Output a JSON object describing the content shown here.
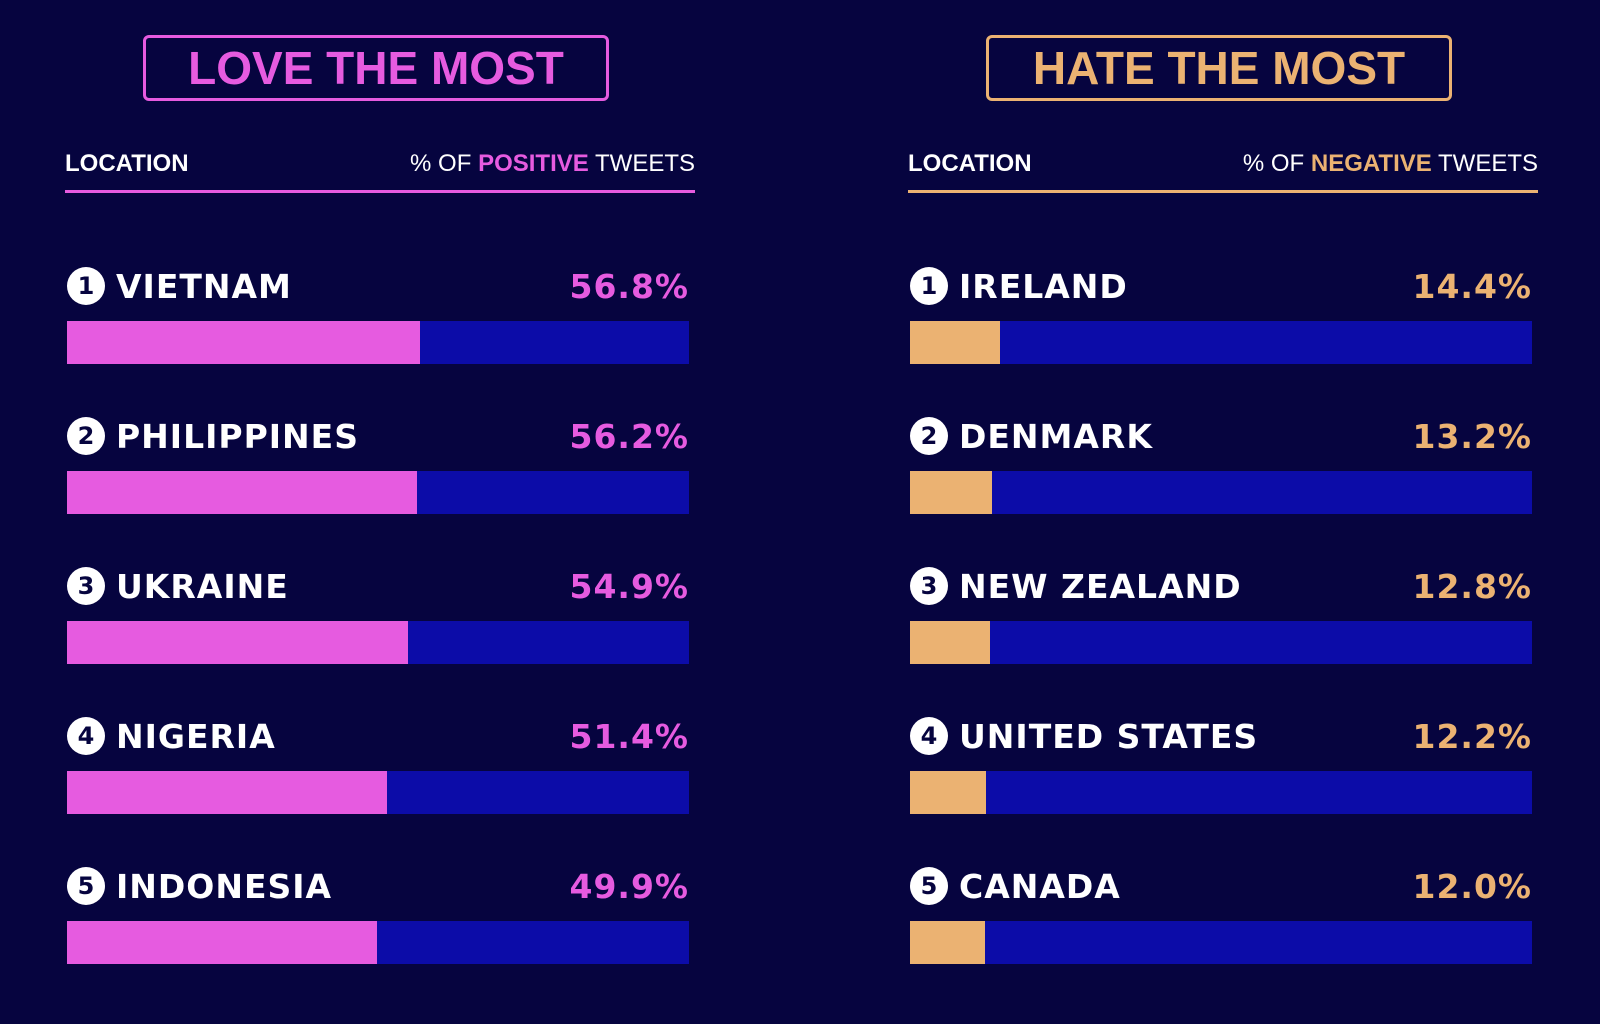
{
  "colors": {
    "background": "#06043f",
    "track": "#0c0ca8",
    "love_accent": "#e65be0",
    "hate_accent": "#ebb272",
    "text": "#ffffff"
  },
  "chart_data": [
    {
      "type": "bar",
      "orientation": "horizontal",
      "title": "LOVE THE MOST",
      "xlabel": "% OF POSITIVE TWEETS",
      "ylabel": "LOCATION",
      "xlim": [
        0,
        100
      ],
      "unit": "%",
      "categories": [
        "VIETNAM",
        "PHILIPPINES",
        "UKRAINE",
        "NIGERIA",
        "INDONESIA"
      ],
      "ranks": [
        "1",
        "2",
        "3",
        "4",
        "5"
      ],
      "values": [
        56.8,
        56.2,
        54.9,
        51.4,
        49.9
      ],
      "labels": [
        "56.8%",
        "56.2%",
        "54.9%",
        "51.4%",
        "49.9%"
      ]
    },
    {
      "type": "bar",
      "orientation": "horizontal",
      "title": "HATE THE MOST",
      "xlabel": "% OF NEGATIVE TWEETS",
      "ylabel": "LOCATION",
      "xlim": [
        0,
        100
      ],
      "unit": "%",
      "categories": [
        "IRELAND",
        "DENMARK",
        "NEW ZEALAND",
        "UNITED STATES",
        "CANADA"
      ],
      "ranks": [
        "1",
        "2",
        "3",
        "4",
        "5"
      ],
      "values": [
        14.4,
        13.2,
        12.8,
        12.2,
        12.0
      ],
      "labels": [
        "14.4%",
        "13.2%",
        "12.8%",
        "12.2%",
        "12.0%"
      ]
    }
  ],
  "love": {
    "title": "LOVE THE MOST",
    "header_left": "LOCATION",
    "header_right_prefix": "% OF ",
    "header_right_accent": "POSITIVE",
    "header_right_suffix": " TWEETS"
  },
  "hate": {
    "title": "HATE THE MOST",
    "header_left": "LOCATION",
    "header_right_prefix": "% OF ",
    "header_right_accent": "NEGATIVE",
    "header_right_suffix": " TWEETS"
  }
}
